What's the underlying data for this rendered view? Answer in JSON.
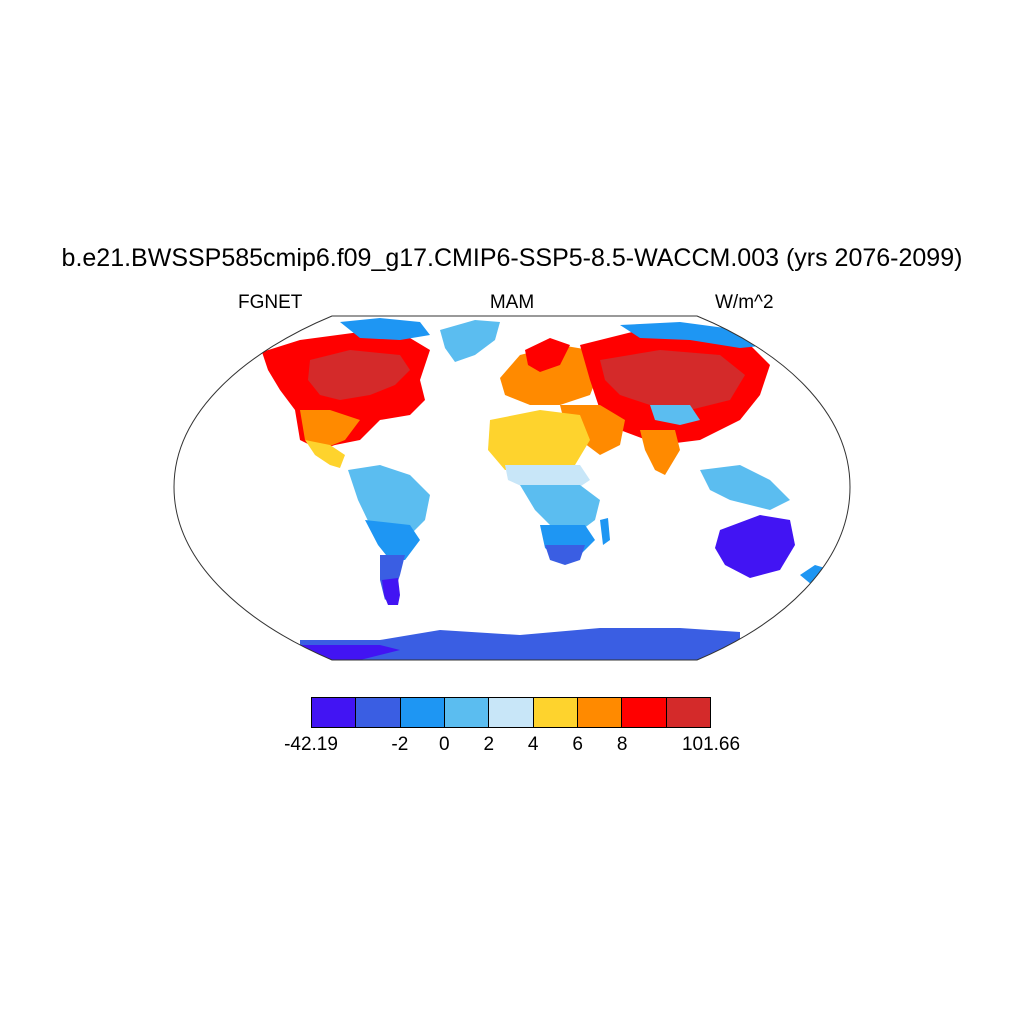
{
  "title": "b.e21.BWSSP585cmip6.f09_g17.CMIP6-SSP5-8.5-WACCM.003 (yrs 2076-2099)",
  "subtitle_left": "FGNET",
  "subtitle_center": "MAM",
  "subtitle_right": "W/m^2",
  "colorbar": {
    "colors": [
      "#4214f3",
      "#3a5ee3",
      "#1e96f3",
      "#5bbdf0",
      "#c8e6f8",
      "#fed32d",
      "#ff8a00",
      "#ff0000",
      "#d42a2a"
    ],
    "boundary_labels": [
      "-42.19",
      "",
      "-2",
      "0",
      "2",
      "4",
      "6",
      "8",
      "",
      "101.66"
    ]
  },
  "colors": {
    "ocean": "#ffffff",
    "outline": "#333333",
    "coast": "#1a1a1a"
  }
}
